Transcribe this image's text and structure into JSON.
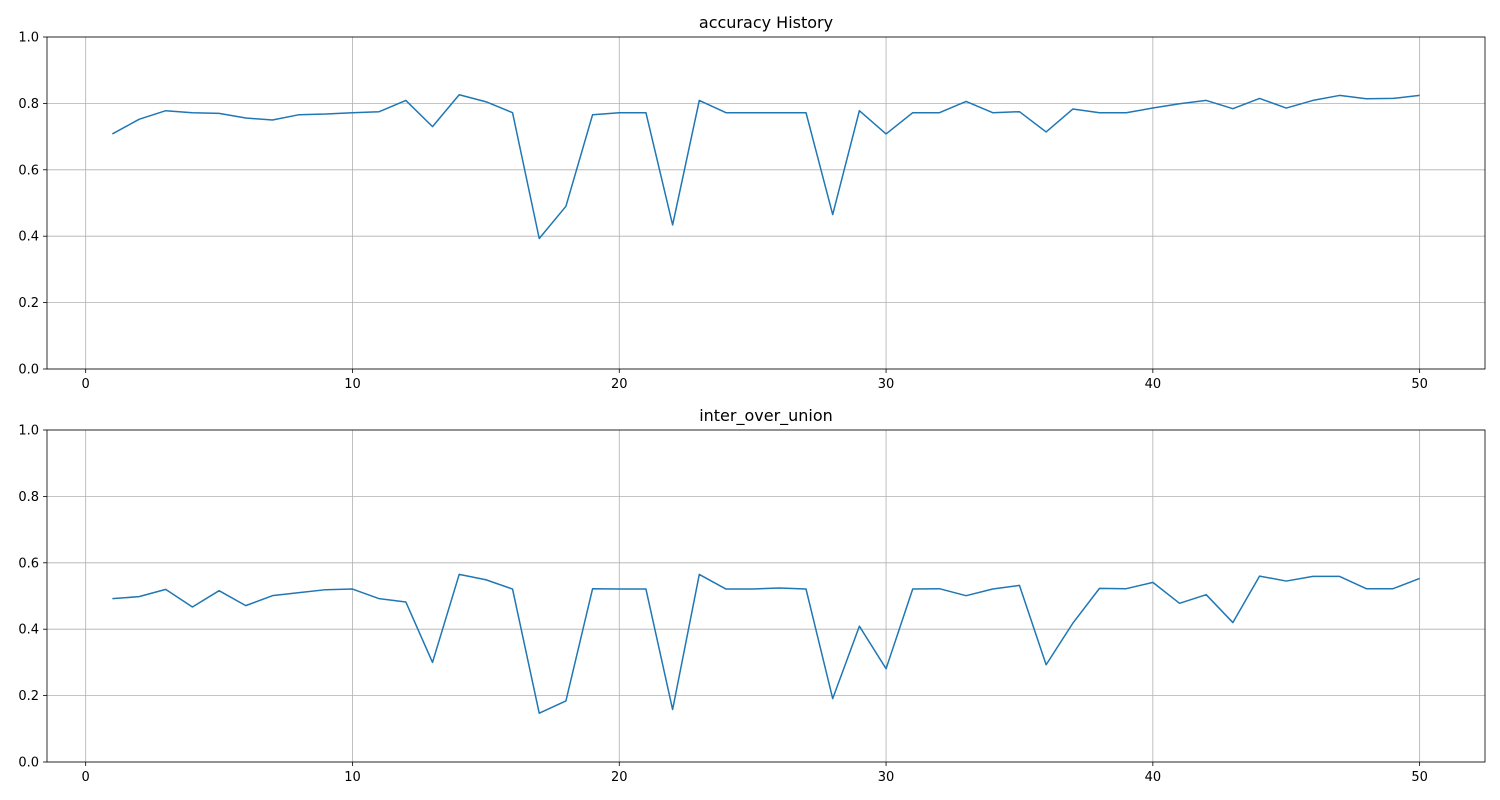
{
  "chart_data": [
    {
      "type": "line",
      "title": "accuracy History",
      "xlabel": "",
      "ylabel": "",
      "xlim": [
        -1.45,
        52.45
      ],
      "ylim": [
        0,
        1
      ],
      "xticks": [
        0,
        10,
        20,
        30,
        40,
        50
      ],
      "yticks": [
        0.0,
        0.2,
        0.4,
        0.6,
        0.8,
        1.0
      ],
      "xtick_labels": [
        "0",
        "10",
        "20",
        "30",
        "40",
        "50"
      ],
      "ytick_labels": [
        "0.0",
        "0.2",
        "0.4",
        "0.6",
        "0.8",
        "1.0"
      ],
      "grid": true,
      "legend": "none",
      "color": "#1f77b4",
      "series": [
        {
          "x": [
            1,
            2,
            3,
            4,
            5,
            6,
            7,
            8,
            9,
            10,
            11,
            12,
            13,
            14,
            15,
            16,
            17,
            18,
            19,
            20,
            21,
            22,
            23,
            24,
            25,
            26,
            27,
            28,
            29,
            30,
            31,
            32,
            33,
            34,
            35,
            36,
            37,
            38,
            39,
            40,
            41,
            42,
            43,
            44,
            45,
            46,
            47,
            48,
            49,
            50
          ],
          "values": [
            0.708,
            0.752,
            0.778,
            0.772,
            0.77,
            0.756,
            0.75,
            0.766,
            0.768,
            0.772,
            0.775,
            0.809,
            0.73,
            0.826,
            0.805,
            0.772,
            0.393,
            0.49,
            0.766,
            0.772,
            0.772,
            0.434,
            0.809,
            0.772,
            0.772,
            0.772,
            0.772,
            0.465,
            0.778,
            0.708,
            0.772,
            0.772,
            0.806,
            0.772,
            0.775,
            0.714,
            0.783,
            0.772,
            0.772,
            0.786,
            0.799,
            0.809,
            0.784,
            0.815,
            0.786,
            0.809,
            0.824,
            0.814,
            0.815,
            0.824
          ]
        }
      ]
    },
    {
      "type": "line",
      "title": "inter_over_union",
      "xlabel": "",
      "ylabel": "",
      "xlim": [
        -1.45,
        52.45
      ],
      "ylim": [
        0,
        1
      ],
      "xticks": [
        0,
        10,
        20,
        30,
        40,
        50
      ],
      "yticks": [
        0.0,
        0.2,
        0.4,
        0.6,
        0.8,
        1.0
      ],
      "xtick_labels": [
        "0",
        "10",
        "20",
        "30",
        "40",
        "50"
      ],
      "ytick_labels": [
        "0.0",
        "0.2",
        "0.4",
        "0.6",
        "0.8",
        "1.0"
      ],
      "grid": true,
      "legend": "none",
      "color": "#1f77b4",
      "series": [
        {
          "x": [
            1,
            2,
            3,
            4,
            5,
            6,
            7,
            8,
            9,
            10,
            11,
            12,
            13,
            14,
            15,
            16,
            17,
            18,
            19,
            20,
            21,
            22,
            23,
            24,
            25,
            26,
            27,
            28,
            29,
            30,
            31,
            32,
            33,
            34,
            35,
            36,
            37,
            38,
            39,
            40,
            41,
            42,
            43,
            44,
            45,
            46,
            47,
            48,
            49,
            50
          ],
          "values": [
            0.492,
            0.498,
            0.52,
            0.467,
            0.516,
            0.471,
            0.501,
            0.51,
            0.519,
            0.521,
            0.492,
            0.482,
            0.3,
            0.565,
            0.549,
            0.521,
            0.147,
            0.184,
            0.522,
            0.521,
            0.521,
            0.158,
            0.565,
            0.521,
            0.521,
            0.524,
            0.521,
            0.191,
            0.409,
            0.281,
            0.521,
            0.522,
            0.501,
            0.521,
            0.532,
            0.293,
            0.418,
            0.523,
            0.522,
            0.541,
            0.478,
            0.504,
            0.42,
            0.56,
            0.545,
            0.559,
            0.559,
            0.522,
            0.522,
            0.553
          ]
        }
      ]
    }
  ]
}
